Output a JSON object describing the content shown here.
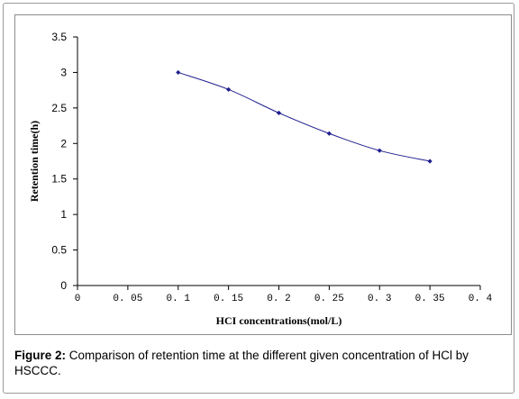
{
  "chart_data": {
    "type": "line",
    "x": [
      0.1,
      0.15,
      0.2,
      0.25,
      0.3,
      0.35
    ],
    "series": [
      {
        "values": [
          3.0,
          2.76,
          2.43,
          2.14,
          1.9,
          1.75
        ]
      }
    ],
    "xlabel": "HCI concentrations(mol/L)",
    "ylabel": "Retention time(h)",
    "xlim": [
      0,
      0.4
    ],
    "ylim": [
      0,
      3.5
    ],
    "x_ticks": [
      "0",
      "0. 05",
      "0. 1",
      "0. 15",
      "0. 2",
      "0. 25",
      "0. 3",
      "0. 35",
      "0. 4"
    ],
    "y_ticks": [
      "0",
      "0.5",
      "1",
      "1.5",
      "2",
      "2.5",
      "3",
      "3.5"
    ],
    "grid": false,
    "line_color": "#1f1f8f",
    "marker_color": "#1f1f8f"
  },
  "caption": {
    "label": "Figure 2:",
    "text": " Comparison of retention time at the different given concentration of HCl by HSCCC."
  }
}
